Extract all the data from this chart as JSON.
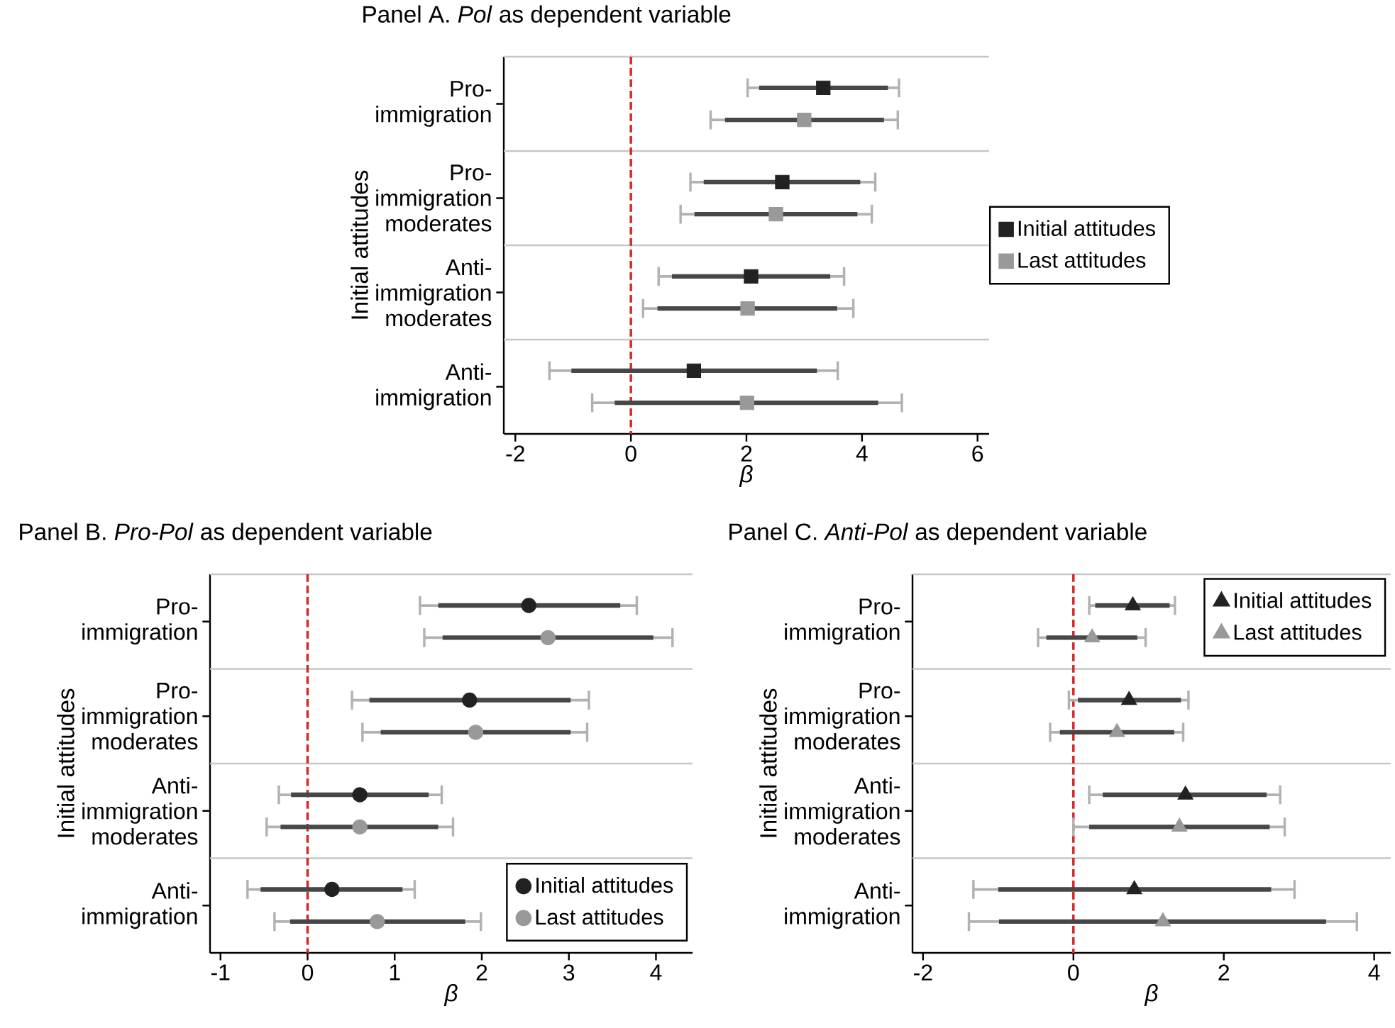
{
  "chart_data": [
    {
      "type": "scatter",
      "orientation": "horizontal",
      "title": "Panel A. *Pol* as dependent variable",
      "xlabel": "β",
      "ylabel": "Initial attitudes",
      "marker": "square",
      "legend": "right",
      "categories": [
        "Pro-immigration",
        "Pro-immigration moderates",
        "Anti-immigration moderates",
        "Anti-immigration"
      ],
      "xlim": [
        -2.2,
        6.2
      ],
      "xticks": [
        -2,
        0,
        2,
        4,
        6
      ],
      "ref_lines": [
        {
          "axis": "x",
          "value": 0,
          "color": "#d62728",
          "line_style": "dashed"
        }
      ],
      "series": [
        {
          "name": "Initial attitudes",
          "color": "#222222",
          "values": [
            3.33,
            2.62,
            2.08,
            1.09
          ],
          "errors": [
            [
              2.02,
              4.64
            ],
            [
              1.03,
              4.23
            ],
            [
              0.48,
              3.69
            ],
            [
              -1.41,
              3.58
            ]
          ]
        },
        {
          "name": "Last attitudes",
          "color": "#999999",
          "values": [
            3.0,
            2.51,
            2.02,
            2.01
          ],
          "errors": [
            [
              1.38,
              4.62
            ],
            [
              0.86,
              4.17
            ],
            [
              0.21,
              3.85
            ],
            [
              -0.67,
              4.69
            ]
          ]
        },
        {
          "type": "bar",
          "color": "#474747",
          "base": [
            2.22,
            1.26,
            0.71,
            -1.03
          ],
          "values": [
            2.23,
            2.71,
            2.74,
            4.25
          ]
        },
        {
          "type": "bar",
          "color": "#474747",
          "base": [
            1.63,
            1.1,
            0.46,
            -0.28
          ],
          "values": [
            2.75,
            2.82,
            3.11,
            4.56
          ]
        }
      ]
    },
    {
      "type": "scatter",
      "orientation": "horizontal",
      "title": "Panel B. *Pro-Pol* as dependent variable",
      "xlabel": "β",
      "ylabel": "Initial attitudes",
      "marker": "circle",
      "legend": "bottom right",
      "categories": [
        "Pro-immigration",
        "Pro-immigration moderates",
        "Anti-immigration moderates",
        "Anti-immigration"
      ],
      "xlim": [
        -1.12,
        4.42
      ],
      "xticks": [
        -1,
        0,
        1,
        2,
        3,
        4
      ],
      "ref_lines": [
        {
          "axis": "x",
          "value": 0,
          "color": "#d62728",
          "line_style": "dashed"
        }
      ],
      "series": [
        {
          "name": "Initial attitudes",
          "color": "#222222",
          "values": [
            2.54,
            1.86,
            0.6,
            0.28
          ],
          "errors": [
            [
              1.29,
              3.78
            ],
            [
              0.51,
              3.23
            ],
            [
              -0.33,
              1.54
            ],
            [
              -0.69,
              1.23
            ]
          ]
        },
        {
          "name": "Last attitudes",
          "color": "#999999",
          "values": [
            2.76,
            1.93,
            0.6,
            0.8
          ],
          "errors": [
            [
              1.34,
              4.19
            ],
            [
              0.63,
              3.21
            ],
            [
              -0.47,
              1.67
            ],
            [
              -0.38,
              1.99
            ]
          ]
        },
        {
          "type": "bar",
          "color": "#474747",
          "base": [
            1.5,
            0.71,
            -0.19,
            -0.54
          ],
          "values": [
            2.09,
            2.31,
            1.58,
            1.63
          ]
        },
        {
          "type": "bar",
          "color": "#474747",
          "base": [
            1.55,
            0.84,
            -0.31,
            -0.2
          ],
          "values": [
            2.42,
            2.18,
            1.81,
            2.01
          ]
        }
      ]
    },
    {
      "type": "scatter",
      "orientation": "horizontal",
      "title": "Panel C. *Anti-Pol* as dependent variable",
      "xlabel": "β",
      "ylabel": "Initial attitudes",
      "marker": "triangle",
      "legend": "top right",
      "categories": [
        "Pro-immigration",
        "Pro-immigration moderates",
        "Anti-immigration moderates",
        "Anti-immigration"
      ],
      "xlim": [
        -2.14,
        4.22
      ],
      "xticks": [
        -2,
        0,
        2,
        4
      ],
      "ref_lines": [
        {
          "axis": "x",
          "value": 0,
          "color": "#d62728",
          "line_style": "dashed"
        }
      ],
      "series": [
        {
          "name": "Initial attitudes",
          "color": "#222222",
          "values": [
            0.79,
            0.74,
            1.49,
            0.81
          ],
          "errors": [
            [
              0.21,
              1.35
            ],
            [
              -0.06,
              1.53
            ],
            [
              0.21,
              2.75
            ],
            [
              -1.33,
              2.94
            ]
          ]
        },
        {
          "name": "Last attitudes",
          "color": "#999999",
          "values": [
            0.25,
            0.58,
            1.41,
            1.19
          ],
          "errors": [
            [
              -0.47,
              0.96
            ],
            [
              -0.31,
              1.46
            ],
            [
              0.0,
              2.81
            ],
            [
              -1.39,
              3.77
            ]
          ]
        },
        {
          "type": "bar",
          "color": "#474747",
          "base": [
            0.29,
            0.06,
            0.39,
            -1.0
          ],
          "values": [
            0.99,
            1.37,
            2.18,
            3.63
          ]
        },
        {
          "type": "bar",
          "color": "#474747",
          "base": [
            -0.36,
            -0.18,
            0.21,
            -0.99
          ],
          "values": [
            1.21,
            1.52,
            2.4,
            4.35
          ]
        }
      ]
    }
  ]
}
